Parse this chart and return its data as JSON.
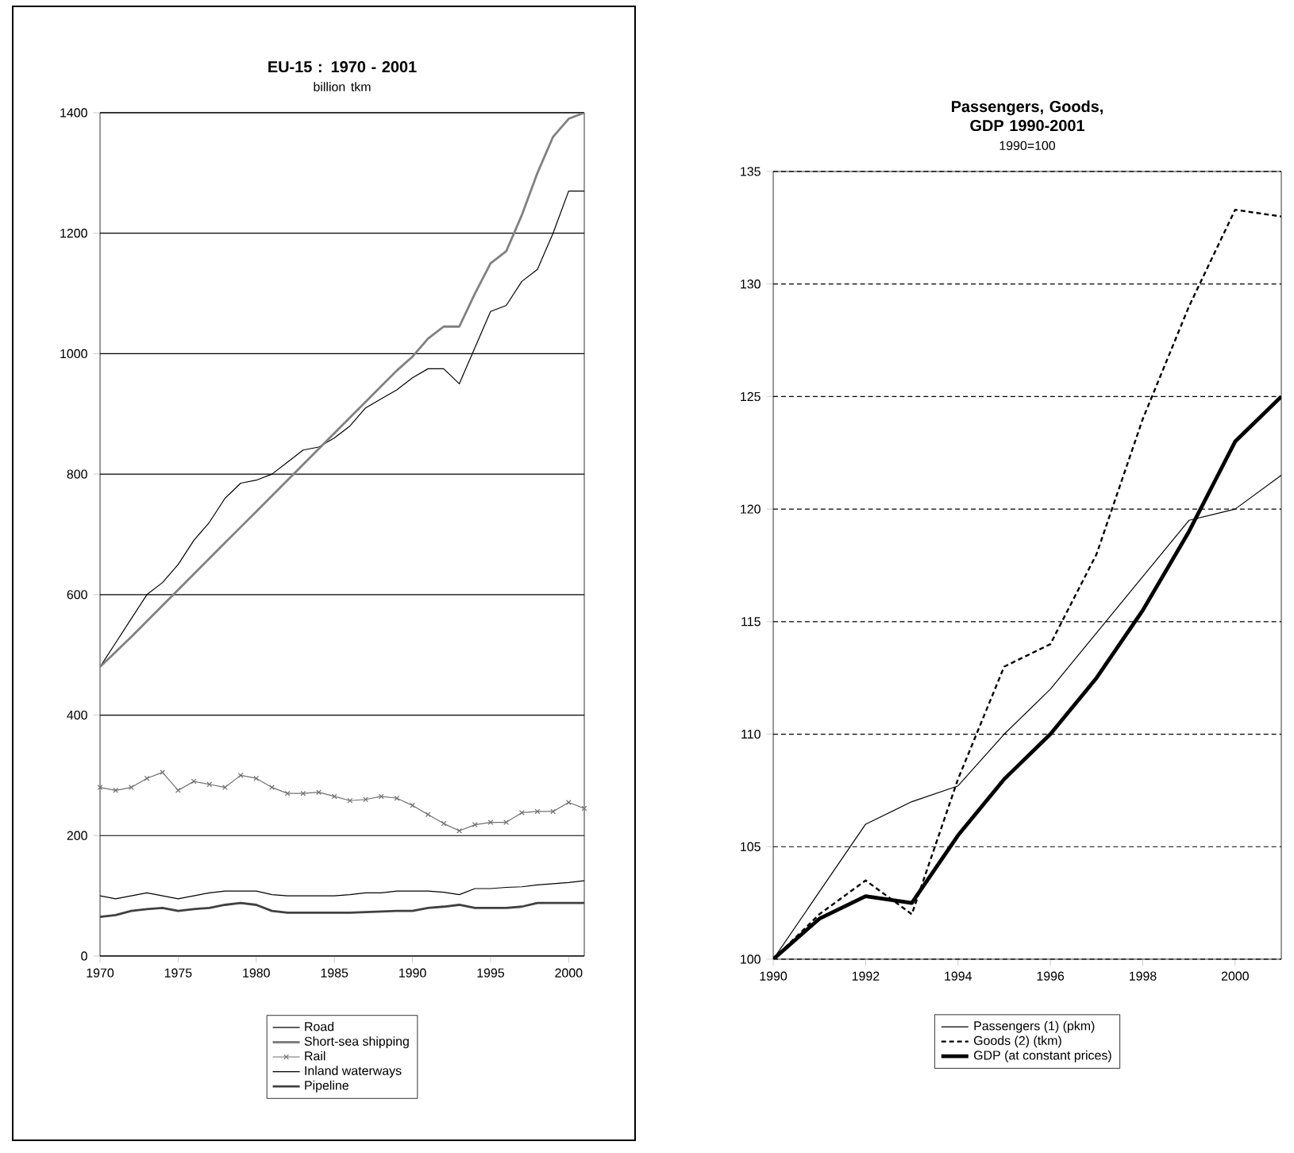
{
  "chart_data": [
    {
      "type": "line",
      "title": "EU-15 : 1970 - 2001",
      "subtitle": "billion tkm",
      "x": [
        1970,
        1971,
        1972,
        1973,
        1974,
        1975,
        1976,
        1977,
        1978,
        1979,
        1980,
        1981,
        1982,
        1983,
        1984,
        1985,
        1986,
        1987,
        1988,
        1989,
        1990,
        1991,
        1992,
        1993,
        1994,
        1995,
        1996,
        1997,
        1998,
        1999,
        2000,
        2001
      ],
      "series": [
        {
          "name": "Road",
          "color": "#000000",
          "values": [
            480,
            520,
            560,
            600,
            620,
            650,
            690,
            720,
            760,
            785,
            790,
            800,
            820,
            840,
            845,
            860,
            880,
            910,
            925,
            940,
            960,
            975,
            975,
            950,
            1010,
            1070,
            1080,
            1120,
            1140,
            1200,
            1270,
            1270
          ]
        },
        {
          "name": "Short-sea shipping",
          "color": "#808080",
          "values": [
            480,
            505,
            530,
            556,
            582,
            608,
            634,
            660,
            686,
            712,
            738,
            764,
            790,
            816,
            842,
            868,
            894,
            920,
            946,
            972,
            995,
            1025,
            1045,
            1045,
            1100,
            1150,
            1170,
            1230,
            1300,
            1360,
            1390,
            1400
          ]
        },
        {
          "name": "Rail",
          "color": "#707070",
          "marker": "cross",
          "values": [
            280,
            275,
            280,
            295,
            305,
            275,
            290,
            285,
            280,
            300,
            295,
            280,
            270,
            270,
            272,
            265,
            258,
            260,
            265,
            262,
            250,
            235,
            220,
            208,
            218,
            222,
            222,
            238,
            240,
            240,
            255,
            245
          ]
        },
        {
          "name": "Inland waterways",
          "color": "#000000",
          "values": [
            100,
            95,
            100,
            105,
            100,
            95,
            100,
            105,
            108,
            108,
            108,
            102,
            100,
            100,
            100,
            100,
            102,
            105,
            105,
            108,
            108,
            108,
            106,
            102,
            112,
            112,
            114,
            115,
            118,
            120,
            122,
            125
          ]
        },
        {
          "name": "Pipeline",
          "color": "#404040",
          "values": [
            65,
            68,
            75,
            78,
            80,
            75,
            78,
            80,
            85,
            88,
            85,
            75,
            72,
            72,
            72,
            72,
            72,
            73,
            74,
            75,
            75,
            80,
            82,
            85,
            80,
            80,
            80,
            82,
            88,
            88,
            88,
            88
          ]
        }
      ],
      "xlim": [
        1970,
        2001
      ],
      "xticks": [
        1970,
        1975,
        1980,
        1985,
        1990,
        1995,
        2000
      ],
      "ylim": [
        0,
        1400
      ],
      "yticks": [
        0,
        200,
        400,
        600,
        800,
        1000,
        1200,
        1400
      ],
      "grid": "y",
      "legend": "bottom"
    },
    {
      "type": "line",
      "title": "Passengers, Goods, GDP 1990-2001",
      "subtitle": "1990=100",
      "x": [
        1990,
        1991,
        1992,
        1993,
        1994,
        1995,
        1996,
        1997,
        1998,
        1999,
        2000,
        2001
      ],
      "series": [
        {
          "name": "Passengers (1) (pkm)",
          "color": "#000000",
          "values": [
            100,
            103,
            106,
            107,
            107.7,
            110,
            112,
            114.5,
            117,
            119.5,
            120,
            121.5
          ]
        },
        {
          "name": "Goods (2) (tkm)",
          "color": "#000000",
          "line_style": "dashed",
          "values": [
            100,
            102,
            103.5,
            102,
            108,
            113,
            114,
            118,
            124,
            129,
            133.3,
            133
          ]
        },
        {
          "name": "GDP (at constant prices)",
          "color": "#000000",
          "values": [
            100,
            101.8,
            102.8,
            102.5,
            105.5,
            108,
            110,
            112.5,
            115.5,
            119,
            123,
            125
          ]
        }
      ],
      "xlim": [
        1990,
        2001
      ],
      "xticks": [
        1990,
        1992,
        1994,
        1996,
        1998,
        2000
      ],
      "ylim": [
        100,
        135
      ],
      "yticks": [
        100,
        105,
        110,
        115,
        120,
        125,
        130,
        135
      ],
      "grid": "y",
      "legend": "bottom"
    }
  ]
}
